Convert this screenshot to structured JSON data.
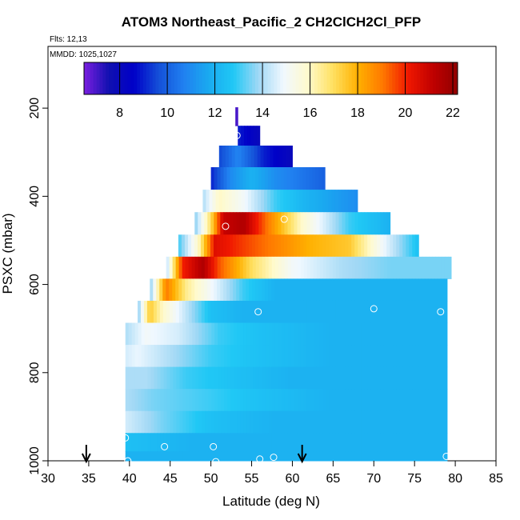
{
  "chart_data": {
    "type": "heatmap",
    "title": "ATOM3 Northeast_Pacific_2 CH2ClCH2Cl_PFP",
    "flights_label": "Flts: 12,13",
    "mmdd_label": "MMDD: 1025,1027",
    "xlabel": "Latitude (deg N)",
    "ylabel": "PSXC (mbar)",
    "xlim": [
      30,
      85
    ],
    "ylim": [
      1000,
      60
    ],
    "x_ticks": [
      "30",
      "35",
      "40",
      "45",
      "50",
      "55",
      "60",
      "65",
      "70",
      "75",
      "80",
      "85"
    ],
    "y_ticks": [
      "200",
      "400",
      "600",
      "800",
      "1000"
    ],
    "colorbar": {
      "range": [
        6.5,
        22.2
      ],
      "ticks": [
        "8",
        "10",
        "12",
        "14",
        "16",
        "18",
        "20",
        "22"
      ],
      "colors": [
        "#7b1fe0",
        "#1010b0",
        "#0000c8",
        "#1450d8",
        "#2080f0",
        "#1aaaf0",
        "#20c8f5",
        "#a0d8f5",
        "#f0f8ff",
        "#fffacc",
        "#ffe060",
        "#ffb000",
        "#ff7800",
        "#f01800",
        "#c00000",
        "#900000"
      ]
    },
    "rows": [
      {
        "p": 218,
        "lat": [
          53.0,
          53.3
        ],
        "v": [
          7.0,
          7.0
        ]
      },
      {
        "p": 262,
        "lat": [
          53.3,
          56.0
        ],
        "v": [
          9.0,
          8.0
        ]
      },
      {
        "p": 308,
        "lat": [
          51.0,
          53.3,
          56.5,
          60.0
        ],
        "v": [
          9.5,
          10.8,
          9.0,
          8.0
        ]
      },
      {
        "p": 360,
        "lat": [
          50.0,
          52.5,
          55.0,
          58.0,
          64.0
        ],
        "v": [
          9.0,
          11.0,
          12.0,
          11.0,
          10.0
        ]
      },
      {
        "p": 410,
        "lat": [
          49.0,
          51.0,
          54.0,
          58.0,
          62.0,
          68.0
        ],
        "v": [
          14.0,
          16.0,
          15.0,
          13.0,
          12.0,
          11.0
        ]
      },
      {
        "p": 462,
        "lat": [
          48.0,
          50.0,
          51.5,
          54.0,
          57.0,
          61.0,
          67.0,
          72.0
        ],
        "v": [
          13.5,
          17.0,
          21.0,
          21.5,
          19.0,
          16.0,
          13.0,
          12.0
        ]
      },
      {
        "p": 512,
        "lat": [
          46.0,
          48.5,
          50.5,
          55.0,
          62.0,
          67.0,
          71.0,
          75.5
        ],
        "v": [
          13.0,
          16.0,
          20.5,
          19.5,
          18.0,
          17.5,
          15.0,
          12.5
        ]
      },
      {
        "p": 562,
        "lat": [
          44.5,
          46.5,
          49.0,
          51.0,
          55.0,
          60.0,
          66.0,
          72.0,
          79.5
        ],
        "v": [
          14.0,
          20.0,
          21.5,
          19.5,
          17.0,
          15.0,
          14.0,
          13.5,
          13.5
        ]
      },
      {
        "p": 612,
        "lat": [
          42.5,
          44.5,
          47.0,
          50.0,
          54.0,
          58.0,
          62.0,
          70.0,
          79.0
        ],
        "v": [
          13.5,
          19.0,
          16.5,
          15.0,
          13.0,
          12.0,
          12.0,
          12.0,
          12.0
        ]
      },
      {
        "p": 662,
        "lat": [
          41.0,
          42.5,
          44.0,
          46.5,
          50.0,
          54.0,
          62.0,
          70.0,
          79.0
        ],
        "v": [
          13.5,
          17.5,
          16.0,
          14.5,
          12.5,
          12.0,
          12.0,
          12.0,
          12.0
        ]
      },
      {
        "p": 712,
        "lat": [
          39.5,
          42.0,
          46.0,
          51.0,
          56.0,
          65.0,
          72.0,
          79.0
        ],
        "v": [
          14.0,
          15.0,
          14.5,
          13.0,
          12.5,
          12.0,
          12.0,
          12.0
        ]
      },
      {
        "p": 762,
        "lat": [
          39.5,
          41.0,
          45.0,
          50.0,
          56.0,
          65.0,
          79.0
        ],
        "v": [
          14.5,
          14.8,
          14.0,
          13.0,
          12.5,
          12.0,
          12.0
        ]
      },
      {
        "p": 812,
        "lat": [
          39.5,
          42.0,
          47.0,
          53.0,
          60.0,
          79.0
        ],
        "v": [
          14.0,
          14.0,
          13.0,
          12.5,
          12.0,
          12.0
        ]
      },
      {
        "p": 862,
        "lat": [
          39.5,
          43.0,
          50.0,
          56.0,
          65.0,
          79.0
        ],
        "v": [
          14.0,
          13.5,
          13.0,
          12.5,
          12.0,
          12.0
        ]
      },
      {
        "p": 912,
        "lat": [
          39.5,
          44.0,
          50.0,
          58.0,
          79.0
        ],
        "v": [
          14.5,
          13.5,
          12.5,
          12.0,
          12.0
        ]
      },
      {
        "p": 962,
        "lat": [
          39.5,
          48.0,
          58.0,
          70.0,
          79.0
        ],
        "v": [
          12.5,
          12.0,
          12.0,
          12.0,
          12.0
        ]
      },
      {
        "p": 995,
        "lat": [
          39.5,
          50.0,
          60.0,
          79.0
        ],
        "v": [
          12.0,
          12.0,
          12.0,
          12.0
        ]
      }
    ],
    "samples": [
      {
        "lat": 53.2,
        "p": 262
      },
      {
        "lat": 59.0,
        "p": 452
      },
      {
        "lat": 51.8,
        "p": 468
      },
      {
        "lat": 55.8,
        "p": 662
      },
      {
        "lat": 70.0,
        "p": 655
      },
      {
        "lat": 78.2,
        "p": 662
      },
      {
        "lat": 39.5,
        "p": 948
      },
      {
        "lat": 44.3,
        "p": 968
      },
      {
        "lat": 50.3,
        "p": 968
      },
      {
        "lat": 39.8,
        "p": 1000
      },
      {
        "lat": 50.6,
        "p": 1002
      },
      {
        "lat": 56.0,
        "p": 996
      },
      {
        "lat": 57.7,
        "p": 992
      },
      {
        "lat": 78.9,
        "p": 990
      }
    ],
    "markers": [
      {
        "lat": 34.7,
        "name": "marker-arrow-1"
      },
      {
        "lat": 61.2,
        "name": "marker-arrow-2"
      }
    ]
  }
}
